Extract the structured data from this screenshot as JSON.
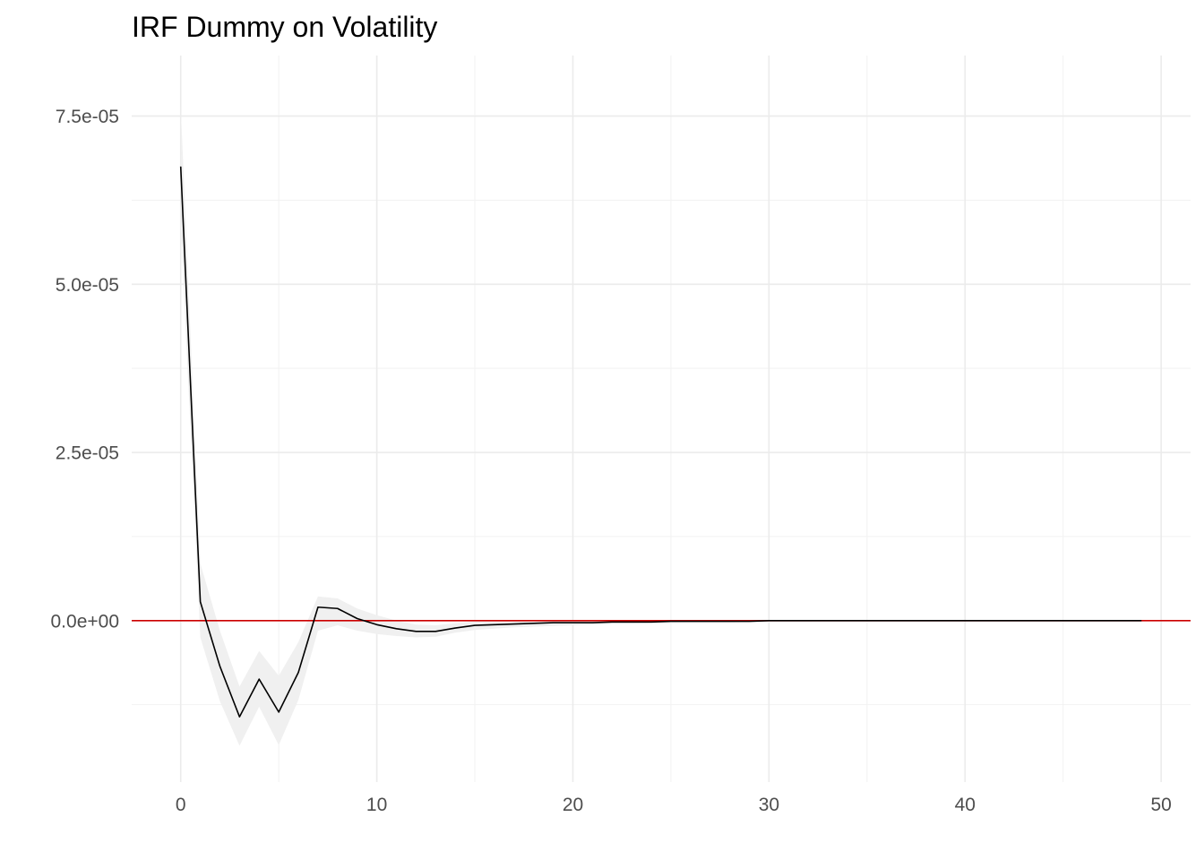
{
  "chart_data": {
    "type": "line",
    "title": "IRF Dummy on Volatility",
    "xlabel": "",
    "ylabel": "",
    "xlim": [
      -2.5,
      51.5
    ],
    "ylim": [
      -2.4e-05,
      8.4e-05
    ],
    "x_ticks": [
      0,
      10,
      20,
      30,
      40,
      50
    ],
    "x_tick_labels": [
      "0",
      "10",
      "20",
      "30",
      "40",
      "50"
    ],
    "y_ticks": [
      0,
      2.5e-05,
      5e-05,
      7.5e-05
    ],
    "y_tick_labels": [
      "0.0e+00",
      "2.5e-05",
      "5.0e-05",
      "7.5e-05"
    ],
    "grid": true,
    "reference_line": {
      "y": 0,
      "color": "#cc0000"
    },
    "colors": {
      "irf_line": "#000000",
      "band_fill": "#f0f0f0",
      "zero_line": "#cc0000"
    },
    "series": [
      {
        "x": [
          0,
          1,
          2,
          3,
          4,
          5,
          6,
          7,
          8,
          9,
          10,
          11,
          12,
          13,
          14,
          15,
          16,
          17,
          18,
          19,
          20,
          21,
          22,
          23,
          24,
          25,
          26,
          27,
          28,
          29,
          30,
          31,
          32,
          33,
          34,
          35,
          36,
          37,
          38,
          39,
          40,
          41,
          42,
          43,
          44,
          45,
          46,
          47,
          48,
          49
        ],
        "values": [
          6.75e-05,
          2.8e-06,
          -6.8e-06,
          -1.43e-05,
          -8.7e-06,
          -1.36e-05,
          -7.7e-06,
          2e-06,
          1.8e-06,
          3e-07,
          -6e-07,
          -1.2e-06,
          -1.6e-06,
          -1.6e-06,
          -1.1e-06,
          -7e-07,
          -6e-07,
          -5e-07,
          -4e-07,
          -3e-07,
          -3e-07,
          -3e-07,
          -2e-07,
          -2e-07,
          -2e-07,
          -1e-07,
          -1e-07,
          -1e-07,
          -1e-07,
          -1e-07,
          0,
          0,
          0,
          0,
          0,
          0,
          0,
          0,
          0,
          0,
          0,
          0,
          0,
          0,
          0,
          0,
          0,
          0,
          0,
          0
        ],
        "lower": [
          5.9e-05,
          -2.5e-06,
          -1.2e-05,
          -1.86e-05,
          -1.28e-05,
          -1.85e-05,
          -1.18e-05,
          -1.5e-06,
          -7e-07,
          -1.5e-06,
          -2e-06,
          -2.3e-06,
          -2.5e-06,
          -2.4e-06,
          -1.8e-06,
          -1.4e-06,
          -1.2e-06,
          -1e-06,
          -9e-07,
          -8e-07,
          -7e-07,
          -6e-07,
          -5e-07,
          -5e-07,
          -4e-07,
          -4e-07,
          -3e-07,
          -3e-07,
          -3e-07,
          -2e-07,
          -2e-07,
          -2e-07,
          -2e-07,
          -1e-07,
          -1e-07,
          -1e-07,
          -1e-07,
          -1e-07,
          -1e-07,
          -1e-07,
          -1e-07,
          0,
          0,
          0,
          0,
          0,
          0,
          0,
          0,
          0
        ],
        "upper": [
          7.65e-05,
          8.5e-06,
          -1.5e-06,
          -9.8e-06,
          -4.5e-06,
          -8.2e-06,
          -3.2e-06,
          3.6e-06,
          3.3e-06,
          1.8e-06,
          8e-07,
          0,
          -6e-07,
          -7e-07,
          -4e-07,
          -1e-07,
          -1e-07,
          0,
          0,
          1e-07,
          1e-07,
          1e-07,
          1e-07,
          1e-07,
          0,
          0,
          0,
          0,
          0,
          0,
          0,
          0,
          0,
          0,
          0,
          0,
          0,
          0,
          0,
          0,
          0,
          0,
          0,
          0,
          0,
          0,
          0,
          0,
          0,
          0
        ]
      }
    ]
  }
}
